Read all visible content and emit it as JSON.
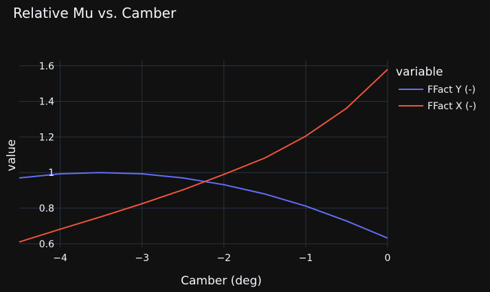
{
  "chart_data": {
    "type": "line",
    "title": "Relative Mu vs. Camber",
    "xlabel": "Camber (deg)",
    "ylabel": "value",
    "xlim": [
      -4.5,
      0
    ],
    "ylim": [
      0.58,
      1.63
    ],
    "x_ticks": [
      -4,
      -3,
      -2,
      -1,
      0
    ],
    "x_tick_labels": [
      "−4",
      "−3",
      "−2",
      "−1",
      "0"
    ],
    "y_ticks": [
      0.6,
      0.8,
      1,
      1.2,
      1.4,
      1.6
    ],
    "y_tick_labels": [
      "0.6",
      "0.8",
      "1",
      "1.2",
      "1.4",
      "1.6"
    ],
    "grid": true,
    "legend": {
      "title": "variable",
      "placement": "right"
    },
    "x": [
      -4.5,
      -4,
      -3.5,
      -3,
      -2.5,
      -2,
      -1.5,
      -1,
      -0.5,
      0
    ],
    "series": [
      {
        "name": "FFact Y (-)",
        "color": "#636efa",
        "values": [
          0.97,
          0.993,
          1.0,
          0.993,
          0.97,
          0.932,
          0.88,
          0.812,
          0.728,
          0.632
        ]
      },
      {
        "name": "FFact X (-)",
        "color": "#ef553b",
        "values": [
          0.61,
          0.682,
          0.752,
          0.825,
          0.903,
          0.99,
          1.082,
          1.205,
          1.362,
          1.58
        ]
      }
    ],
    "colors": {
      "background": "#111111",
      "grid": "#283442",
      "text": "#f2f5fa"
    }
  }
}
